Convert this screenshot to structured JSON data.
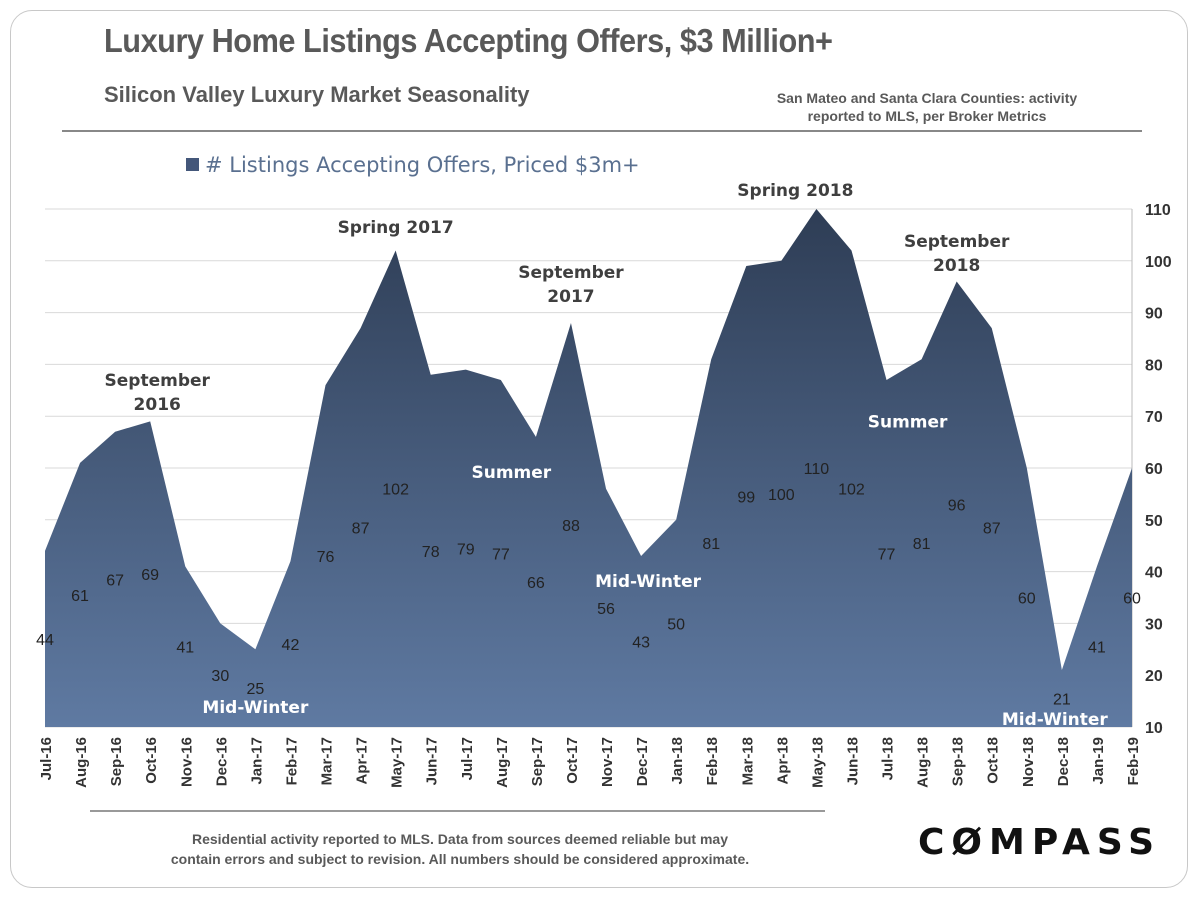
{
  "header": {
    "title": "Luxury Home Listings Accepting Offers, $3 Million+",
    "subtitle": "Silicon Valley Luxury Market Seasonality",
    "source_line1": "San Mateo and Santa Clara Counties:  activity",
    "source_line2": "reported to MLS, per Broker Metrics"
  },
  "footer": {
    "note_line1": "Residential activity reported to MLS. Data from sources  deemed reliable but may",
    "note_line2": "contain errors and subject to revision. All numbers should  be considered approximate.",
    "logo": "COMPASS"
  },
  "colors": {
    "area_top": "#2e3d55",
    "area_bottom": "#5f7aa2",
    "annotation_dark": "#3f3f3f",
    "annotation_light": "#ffffff"
  },
  "chart_data": {
    "type": "area",
    "legend": "# Listings Accepting Offers, Priced $3m+",
    "legend_position": "top-left",
    "categories": [
      "Jul-16",
      "Aug-16",
      "Sep-16",
      "Oct-16",
      "Nov-16",
      "Dec-16",
      "Jan-17",
      "Feb-17",
      "Mar-17",
      "Apr-17",
      "May-17",
      "Jun-17",
      "Jul-17",
      "Aug-17",
      "Sep-17",
      "Oct-17",
      "Nov-17",
      "Dec-17",
      "Jan-18",
      "Feb-18",
      "Mar-18",
      "Apr-18",
      "May-18",
      "Jun-18",
      "Jul-18",
      "Aug-18",
      "Sep-18",
      "Oct-18",
      "Nov-18",
      "Dec-18",
      "Jan-19",
      "Feb-19"
    ],
    "values": [
      44,
      61,
      67,
      69,
      41,
      30,
      25,
      42,
      76,
      87,
      102,
      78,
      79,
      77,
      66,
      88,
      56,
      43,
      50,
      81,
      99,
      100,
      110,
      102,
      77,
      81,
      96,
      87,
      60,
      21,
      41,
      60
    ],
    "ylim": [
      10,
      110
    ],
    "yticks": [
      10,
      20,
      30,
      40,
      50,
      60,
      70,
      80,
      90,
      100,
      110
    ],
    "y_axis_side": "right",
    "grid": true,
    "annotations": [
      {
        "lines": [
          "September",
          "2016"
        ],
        "x": 3.2,
        "y": 77,
        "style": "dark"
      },
      {
        "lines": [
          "Spring 2017"
        ],
        "x": 10,
        "y": 106.5,
        "style": "dark"
      },
      {
        "lines": [
          "September",
          "2017"
        ],
        "x": 15,
        "y": 97.8,
        "style": "dark"
      },
      {
        "lines": [
          "Spring 2018"
        ],
        "x": 21.4,
        "y": 113.7,
        "style": "dark"
      },
      {
        "lines": [
          "September",
          "2018"
        ],
        "x": 26,
        "y": 103.8,
        "style": "dark"
      },
      {
        "lines": [
          "Summer"
        ],
        "x": 13.3,
        "y": 59.2,
        "style": "light"
      },
      {
        "lines": [
          "Summer"
        ],
        "x": 24.6,
        "y": 69,
        "style": "light"
      },
      {
        "lines": [
          "Mid-Winter"
        ],
        "x": 6.0,
        "y": 13.9,
        "style": "light"
      },
      {
        "lines": [
          "Mid-Winter"
        ],
        "x": 17.2,
        "y": 38.2,
        "style": "light"
      },
      {
        "lines": [
          "Mid-Winter"
        ],
        "x": 28.8,
        "y": 11.5,
        "style": "light"
      }
    ]
  }
}
